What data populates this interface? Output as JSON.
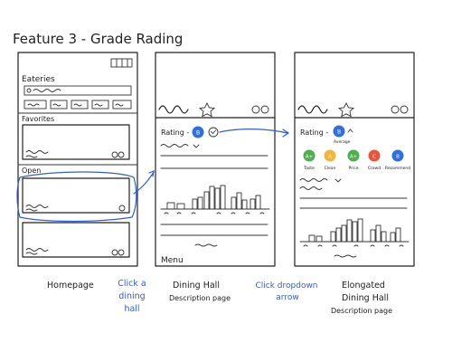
{
  "title": "Feature 3 - Grade Rading",
  "homepage": {
    "header": "Eateries",
    "favorites_label": "Favorites",
    "open_label": "Open"
  },
  "dining_hall": {
    "rating_label": "Rating -",
    "rating_badge": "B",
    "menu_label": "Menu"
  },
  "elongated": {
    "rating_label": "Rating -",
    "rating_badge": "B",
    "average_label": "Average",
    "categories": [
      {
        "badge": "A+",
        "label": "Taste",
        "color": "#4caf50"
      },
      {
        "badge": "A",
        "label": "Clean",
        "color": "#f3b63a"
      },
      {
        "badge": "A+",
        "label": "Price",
        "color": "#4caf50"
      },
      {
        "badge": "C",
        "label": "Crowd",
        "color": "#e8553a"
      },
      {
        "badge": "B",
        "label": "Recommend",
        "color": "#2f6fe0"
      }
    ]
  },
  "captions": {
    "homepage": "Homepage",
    "click_line1": "Click a",
    "click_line2": "dining",
    "click_line3": "hall",
    "dining_line1": "Dining Hall",
    "dining_line2": "Description page",
    "dropdown_line1": "Click dropdown",
    "dropdown_line2": "arrow",
    "elongated_line1": "Elongated",
    "elongated_line2": "Dining Hall",
    "elongated_line3": "Description page"
  },
  "colors": {
    "accent_blue": "#2f5fd6",
    "ink": "#222222"
  }
}
